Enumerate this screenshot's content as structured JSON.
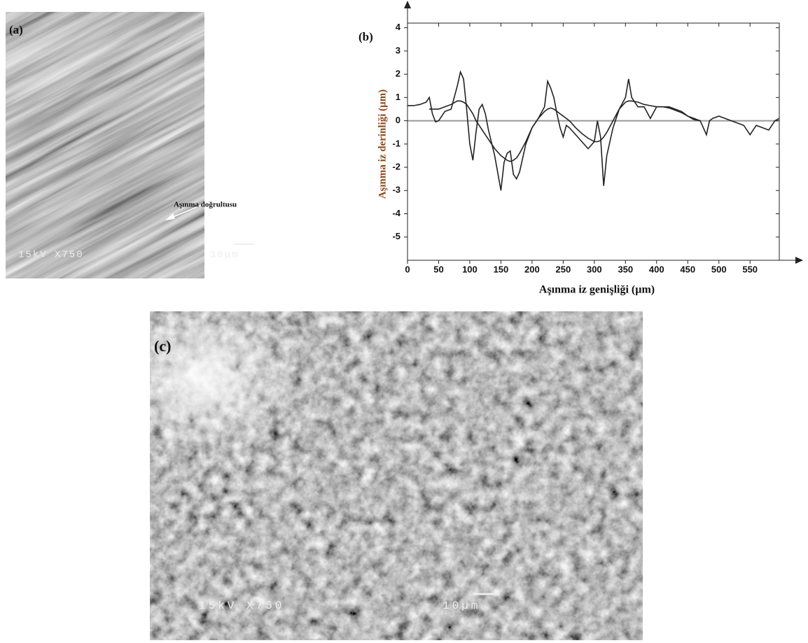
{
  "chart_data": {
    "type": "line",
    "panel_label": "(b)",
    "xlabel": "Aşınma iz genişliği (µm)",
    "ylabel": "Aşınma iz derinliği (µm)",
    "x": [
      0,
      10,
      20,
      30,
      35,
      40,
      45,
      50,
      60,
      70,
      80,
      85,
      90,
      95,
      100,
      105,
      110,
      115,
      120,
      125,
      130,
      140,
      150,
      155,
      160,
      165,
      170,
      175,
      180,
      190,
      200,
      210,
      220,
      225,
      230,
      235,
      240,
      245,
      250,
      255,
      260,
      270,
      280,
      290,
      300,
      305,
      310,
      315,
      320,
      330,
      340,
      350,
      355,
      360,
      370,
      380,
      390,
      400,
      410,
      420,
      430,
      440,
      450,
      460,
      470,
      480,
      485,
      490,
      500,
      510,
      520,
      530,
      540,
      550,
      560,
      570,
      580,
      590,
      597
    ],
    "series": [
      {
        "color": "#222222",
        "values": [
          0.65,
          0.65,
          0.7,
          0.8,
          1.0,
          0.3,
          -0.05,
          0.0,
          0.4,
          0.5,
          1.5,
          2.1,
          1.8,
          0.5,
          -1.0,
          -1.7,
          -0.5,
          0.5,
          0.7,
          0.3,
          -0.4,
          -1.5,
          -3.0,
          -1.8,
          -1.4,
          -1.3,
          -2.3,
          -2.5,
          -2.2,
          -1.0,
          -0.3,
          0.1,
          0.6,
          1.7,
          1.4,
          1.0,
          0.3,
          -0.3,
          -0.7,
          -0.2,
          -0.3,
          -0.6,
          -0.9,
          -1.2,
          -0.9,
          0.0,
          -0.7,
          -2.8,
          -1.5,
          -0.3,
          0.5,
          1.0,
          1.8,
          1.0,
          0.6,
          0.6,
          0.1,
          0.6,
          0.6,
          0.6,
          0.5,
          0.4,
          0.2,
          0.05,
          0.0,
          -0.6,
          0.0,
          0.1,
          0.2,
          0.1,
          0.0,
          -0.1,
          -0.2,
          -0.6,
          -0.2,
          -0.3,
          -0.4,
          0.0,
          0.1
        ]
      },
      {
        "color": "#222222",
        "values": [
          null,
          null,
          null,
          null,
          0.5,
          0.5,
          0.5,
          0.5,
          0.6,
          0.7,
          0.85,
          0.85,
          0.8,
          0.7,
          0.5,
          0.3,
          0.0,
          -0.2,
          -0.4,
          -0.6,
          -0.8,
          -1.2,
          -1.5,
          -1.6,
          -1.7,
          -1.75,
          -1.7,
          -1.6,
          -1.4,
          -0.9,
          -0.3,
          0.1,
          0.4,
          0.5,
          0.55,
          0.5,
          0.4,
          0.3,
          0.2,
          0.1,
          0.0,
          -0.3,
          -0.55,
          -0.75,
          -0.9,
          -0.9,
          -0.85,
          -0.7,
          -0.5,
          0.0,
          0.5,
          0.8,
          0.85,
          0.85,
          0.8,
          0.7,
          0.65,
          0.6,
          0.6,
          0.55,
          0.45,
          0.35,
          0.2,
          0.1,
          0.0,
          null,
          null,
          null,
          null,
          null,
          null,
          null,
          null,
          null,
          null,
          null,
          null,
          null,
          null
        ]
      }
    ],
    "xlim": [
      0,
      597
    ],
    "ylim": [
      -6,
      4.2
    ],
    "xticks": [
      0,
      50,
      100,
      150,
      200,
      250,
      300,
      350,
      400,
      450,
      500,
      550
    ],
    "yticks": [
      4,
      3,
      2,
      1,
      0,
      -1,
      -2,
      -3,
      -4,
      -5
    ],
    "grid": false
  },
  "panel_a": {
    "label": "(a)",
    "arrow_text": "Aşınma doğrultusu",
    "info": "15kV X750",
    "scale": "10µm"
  },
  "panel_c": {
    "label": "(c)",
    "info": "15kV X750",
    "scale": "10µm"
  }
}
